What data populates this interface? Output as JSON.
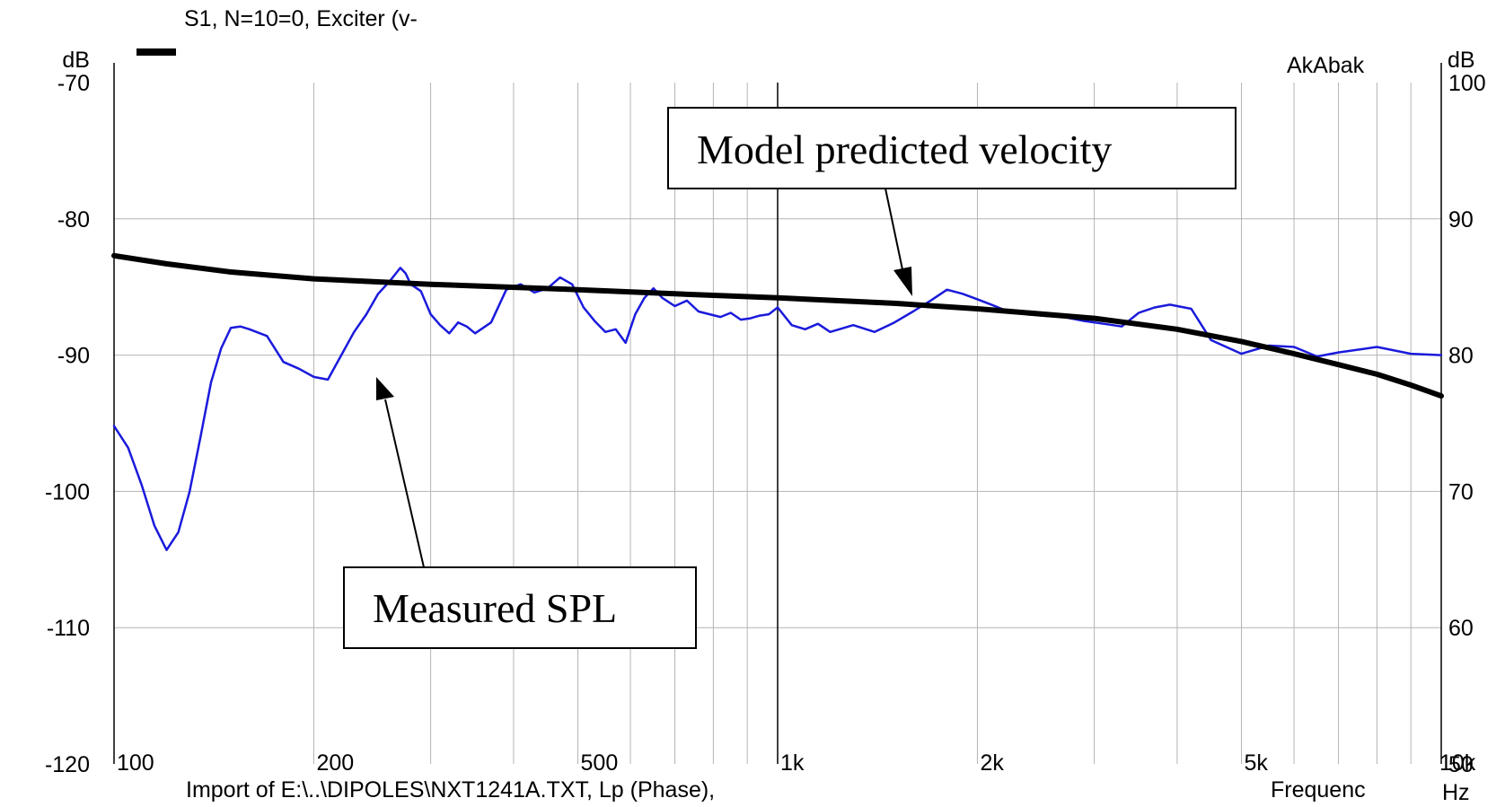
{
  "header": {
    "series_title": "S1, N=10=0, Exciter (v-",
    "software_label": "AkAbak"
  },
  "footer": {
    "import_label": "Import of E:\\..\\DIPOLES\\NXT1241A.TXT, Lp (Phase),",
    "x_axis_label": "Frequenc",
    "x_unit": "Hz"
  },
  "annotations": {
    "model_box": "Model predicted velocity",
    "measured_box": "Measured SPL"
  },
  "colors": {
    "measured": "#1a1adc",
    "model": "#000000",
    "grid": "#b4b4b4",
    "grid_major": "#000000"
  },
  "chart_data": {
    "type": "line",
    "x_scale": "log",
    "xlim": [
      100,
      10000
    ],
    "x_unit": "Hz",
    "ylim_left": [
      -120,
      -70
    ],
    "ylabel_left": "dB",
    "ylim_right": [
      50,
      100
    ],
    "ylabel_right": "dB",
    "grid": true,
    "x_tick_labels": [
      {
        "value": 100,
        "label": "100"
      },
      {
        "value": 200,
        "label": "200"
      },
      {
        "value": 500,
        "label": "500"
      },
      {
        "value": 1000,
        "label": "1k"
      },
      {
        "value": 2000,
        "label": "2k"
      },
      {
        "value": 5000,
        "label": "5k"
      },
      {
        "value": 10000,
        "label": "10k"
      }
    ],
    "y_left_ticks": [
      -70,
      -80,
      -90,
      -100,
      -110,
      -120
    ],
    "y_right_ticks": [
      100,
      90,
      80,
      70,
      60,
      50
    ],
    "series": [
      {
        "axis": "left",
        "x": [
          100,
          105,
          110,
          115,
          120,
          125,
          130,
          135,
          140,
          145,
          150,
          155,
          160,
          170,
          180,
          190,
          200,
          210,
          220,
          230,
          240,
          250,
          260,
          270,
          275,
          280,
          290,
          300,
          310,
          320,
          330,
          340,
          350,
          370,
          390,
          410,
          430,
          450,
          470,
          490,
          510,
          530,
          550,
          570,
          590,
          610,
          630,
          650,
          670,
          700,
          730,
          760,
          790,
          820,
          850,
          880,
          910,
          940,
          970,
          1000,
          1050,
          1100,
          1150,
          1200,
          1300,
          1400,
          1500,
          1600,
          1700,
          1800,
          1900,
          2000,
          2100,
          2200,
          2300,
          2500,
          2700,
          2900,
          3100,
          3300,
          3500,
          3700,
          3900,
          4200,
          4500,
          5000,
          5500,
          6000,
          6500,
          7000,
          7500,
          8000,
          9000,
          10000
        ],
        "y": [
          -95.2,
          -96.8,
          -99.5,
          -102.5,
          -104.3,
          -103.0,
          -100.0,
          -96.0,
          -92.0,
          -89.5,
          -88.0,
          -87.9,
          -88.1,
          -88.6,
          -90.5,
          -91.0,
          -91.6,
          -91.8,
          -90.0,
          -88.3,
          -87.0,
          -85.5,
          -84.6,
          -83.6,
          -84.0,
          -84.8,
          -85.3,
          -87.0,
          -87.8,
          -88.4,
          -87.6,
          -87.9,
          -88.4,
          -87.6,
          -85.2,
          -84.8,
          -85.4,
          -85.1,
          -84.3,
          -84.8,
          -86.5,
          -87.5,
          -88.3,
          -88.1,
          -89.1,
          -87.0,
          -85.8,
          -85.1,
          -85.8,
          -86.4,
          -86.0,
          -86.8,
          -87.0,
          -87.2,
          -86.9,
          -87.4,
          -87.3,
          -87.1,
          -87.0,
          -86.5,
          -87.8,
          -88.1,
          -87.7,
          -88.3,
          -87.8,
          -88.3,
          -87.6,
          -86.8,
          -86.0,
          -85.2,
          -85.5,
          -85.9,
          -86.3,
          -86.7,
          -86.9,
          -87.1,
          -87.2,
          -87.5,
          -87.7,
          -87.9,
          -86.9,
          -86.5,
          -86.3,
          -86.6,
          -88.9,
          -89.9,
          -89.3,
          -89.4,
          -90.1,
          -89.8,
          -89.6,
          -89.4,
          -89.9,
          -90.0
        ]
      },
      {
        "axis": "left",
        "x": [
          100,
          120,
          150,
          200,
          300,
          500,
          700,
          1000,
          1500,
          2000,
          3000,
          4000,
          5000,
          6000,
          7000,
          8000,
          9000,
          10000
        ],
        "y": [
          -82.7,
          -83.3,
          -83.9,
          -84.4,
          -84.8,
          -85.2,
          -85.5,
          -85.8,
          -86.2,
          -86.6,
          -87.3,
          -88.1,
          -89.0,
          -89.9,
          -90.7,
          -91.4,
          -92.2,
          -93.0
        ]
      }
    ]
  }
}
